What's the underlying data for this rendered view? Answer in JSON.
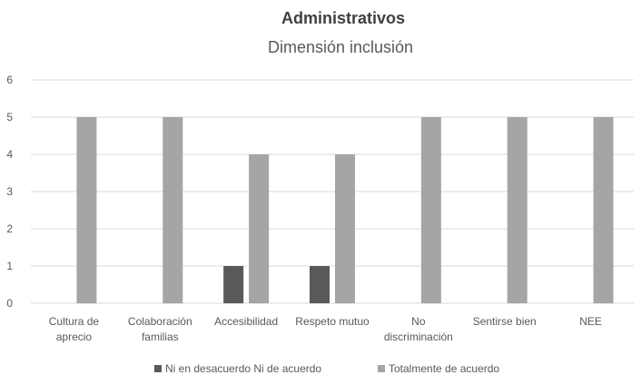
{
  "chart_data": {
    "type": "bar",
    "title": "Administrativos",
    "subtitle": "Dimensión inclusión",
    "categories": [
      [
        "Cultura de",
        "aprecio"
      ],
      [
        "Colaboración",
        "familias"
      ],
      [
        "Accesibilidad"
      ],
      [
        "Respeto mutuo"
      ],
      [
        "No",
        "discriminación"
      ],
      [
        "Sentirse bien"
      ],
      [
        "NEE"
      ]
    ],
    "series": [
      {
        "name": "Ni en desacuerdo Ni de acuerdo",
        "color": "#595959",
        "values": [
          0,
          0,
          1,
          1,
          0,
          0,
          0
        ]
      },
      {
        "name": "Totalmente de acuerdo",
        "color": "#a5a5a5",
        "values": [
          5,
          5,
          4,
          4,
          5,
          5,
          5
        ]
      }
    ],
    "ylim": [
      0,
      6
    ],
    "yticks": [
      0,
      1,
      2,
      3,
      4,
      5,
      6
    ],
    "grid": true,
    "legend": "bottom"
  }
}
